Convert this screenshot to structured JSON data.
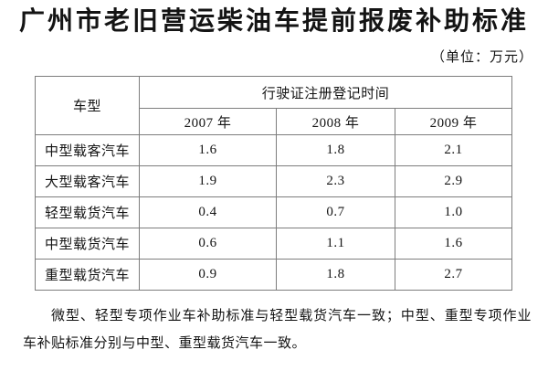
{
  "page": {
    "title": "广州市老旧营运柴油车提前报废补助标准",
    "unit_note": "（单位：万元）",
    "footnote": "微型、轻型专项作业车补助标准与轻型载货汽车一致；中型、重型专项作业车补贴标准分别与中型、重型载货汽车一致。"
  },
  "table": {
    "corner_header": "车型",
    "group_header": "行驶证注册登记时间",
    "year_headers": [
      "2007 年",
      "2008 年",
      "2009 年"
    ],
    "rows": [
      {
        "type": "中型载客汽车",
        "values": [
          "1.6",
          "1.8",
          "2.1"
        ]
      },
      {
        "type": "大型载客汽车",
        "values": [
          "1.9",
          "2.3",
          "2.9"
        ]
      },
      {
        "type": "轻型载货汽车",
        "values": [
          "0.4",
          "0.7",
          "1.0"
        ]
      },
      {
        "type": "中型载货汽车",
        "values": [
          "0.6",
          "1.1",
          "1.6"
        ]
      },
      {
        "type": "重型载货汽车",
        "values": [
          "0.9",
          "1.8",
          "2.7"
        ]
      }
    ]
  },
  "colors": {
    "text": "#141414",
    "table_border": "#7d7d7d",
    "background": "#ffffff"
  }
}
